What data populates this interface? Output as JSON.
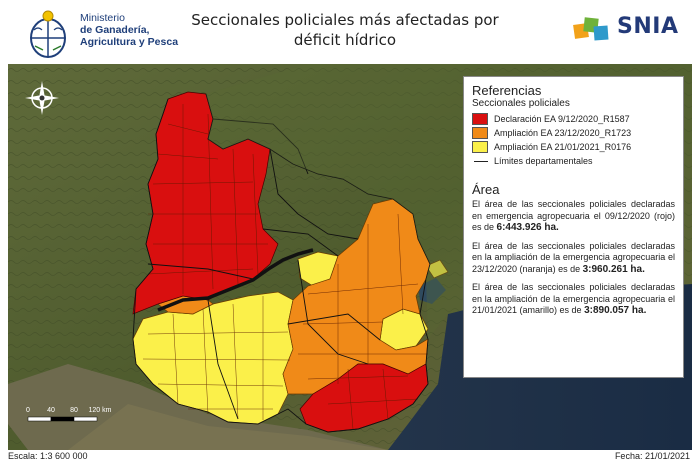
{
  "header": {
    "ministry_line1": "Ministerio",
    "ministry_line2": "de Ganadería,",
    "ministry_line3": "Agricultura y Pesca",
    "title_line1": "Seccionales policiales más afectadas por",
    "title_line2": "déficit hídrico",
    "brand": "SNIA"
  },
  "legend": {
    "title": "Referencias",
    "subtitle": "Seccionales policiales",
    "items": [
      {
        "label": "Declaración EA 9/12/2020_R1587",
        "color": "#d90f0f"
      },
      {
        "label": "Ampliación EA 23/12/2020_R1723",
        "color": "#f08a18"
      },
      {
        "label": "Ampliación EA 21/01/2021_R0176",
        "color": "#fbf04a"
      }
    ],
    "boundary_label": "Límites departamentales",
    "area_title": "Área",
    "paragraphs": [
      {
        "text": "El área de las seccionales policiales declaradas en emergencia agropecuaria el 09/12/2020 (rojo) es de ",
        "value": "6:443.926 ha."
      },
      {
        "text": "El área de las seccionales policiales declaradas en la ampliación de la emergencia agropecuaria el 23/12/2020 (naranja) es de ",
        "value": "3:960.261 ha."
      },
      {
        "text": "El área de las seccionales policiales declaradas en la ampliación de la emergencia agropecuaria el 21/01/2021 (amarillo) es de ",
        "value": "3:890.057 ha."
      }
    ]
  },
  "scale": {
    "ticks": [
      "0",
      "40",
      "80",
      "120 km"
    ]
  },
  "footer": {
    "scale_text": "Escala: 1:3 600 000",
    "date_text": "Fecha: 21/01/2021"
  }
}
